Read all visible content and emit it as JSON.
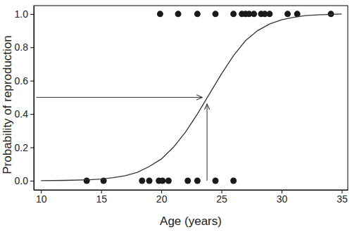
{
  "chart_data": {
    "type": "scatter",
    "x_label": "Age (years)",
    "y_label": "Probability of reproduction",
    "xlim": [
      9.4,
      35.5
    ],
    "ylim": [
      -0.055,
      1.05
    ],
    "xticks": [
      10,
      15,
      20,
      25,
      30,
      35
    ],
    "yticks": [
      {
        "value": 0,
        "label": "0.0"
      },
      0.2,
      0.4,
      0.6,
      0.8,
      {
        "value": 1,
        "label": "1.0"
      }
    ],
    "series": [
      {
        "type": "scatter",
        "marker": "circle",
        "color": "#1a1a1a",
        "x": [
          19.9,
          21.4,
          23.0,
          24.5,
          26.0,
          26.7,
          27.0,
          27.3,
          27.7,
          28.3,
          28.6,
          29.0,
          30.5,
          31.3,
          34.1,
          13.8,
          15.2,
          18.4,
          19.0,
          19.8,
          20.1,
          20.6,
          22.2,
          23.0,
          24.5,
          26.0
        ],
        "values": [
          1,
          1,
          1,
          1,
          1,
          1,
          1,
          1,
          1,
          1,
          1,
          1,
          1,
          1,
          1,
          0,
          0,
          0,
          0,
          0,
          0,
          0,
          0,
          0,
          0,
          0
        ]
      },
      {
        "type": "line",
        "line_style": "solid",
        "color": "#333333",
        "x": [
          10,
          12,
          14,
          15,
          16,
          17,
          18,
          19,
          20,
          21,
          22,
          23,
          24,
          25,
          26,
          27,
          28,
          29,
          30,
          31,
          32,
          33,
          35
        ],
        "values": [
          0.0,
          0.002,
          0.006,
          0.01,
          0.018,
          0.03,
          0.05,
          0.085,
          0.13,
          0.2,
          0.29,
          0.4,
          0.52,
          0.64,
          0.75,
          0.84,
          0.9,
          0.94,
          0.965,
          0.98,
          0.99,
          0.995,
          1.0
        ]
      }
    ],
    "arrows": [
      {
        "x1": 9.6,
        "y1": 0.5,
        "x2": 23.4,
        "y2": 0.5
      },
      {
        "x1": 23.8,
        "y1": 0,
        "x2": 23.8,
        "y2": 0.46
      }
    ]
  }
}
